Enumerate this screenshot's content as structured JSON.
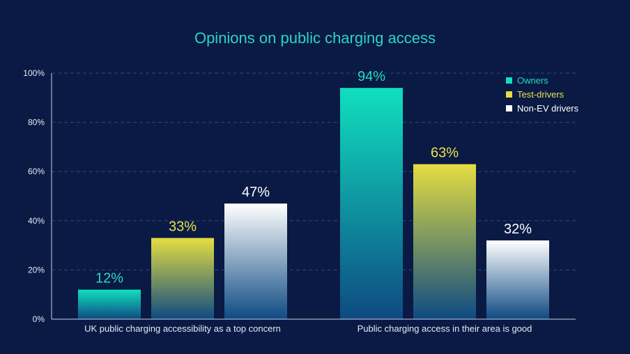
{
  "colors": {
    "background": "#0a1a44",
    "title": "#2fd3c0",
    "axis_text": "#e6ebf5",
    "grid": "#2a4a73",
    "owners": "#10e0bf",
    "test_drivers": "#e4de40",
    "non_ev": "#ffffff",
    "bar_bottom": "#0e4a82",
    "owners_label": "#26d9c0",
    "test_drivers_label": "#e9e34a",
    "non_ev_label": "#ffffff"
  },
  "chart_data": {
    "type": "bar",
    "title": "Opinions on public charging access",
    "xlabel": "",
    "ylabel": "",
    "ylim": [
      0,
      100
    ],
    "yticks": [
      0,
      20,
      40,
      60,
      80,
      100
    ],
    "ytick_labels": [
      "0%",
      "20%",
      "40%",
      "60%",
      "80%",
      "100%"
    ],
    "grid": true,
    "legend_position": "top-right",
    "categories": [
      "UK public charging accessibility as a top concern",
      "Public charging access in their area is good"
    ],
    "series": [
      {
        "key": "owners",
        "name": "Owners",
        "values": [
          12,
          94
        ],
        "labels": [
          "12%",
          "94%"
        ]
      },
      {
        "key": "test_drivers",
        "name": "Test-drivers",
        "values": [
          33,
          63
        ],
        "labels": [
          "33%",
          "63%"
        ]
      },
      {
        "key": "non_ev",
        "name": "Non-EV drivers",
        "values": [
          47,
          32
        ],
        "labels": [
          "47%",
          "32%"
        ]
      }
    ]
  }
}
